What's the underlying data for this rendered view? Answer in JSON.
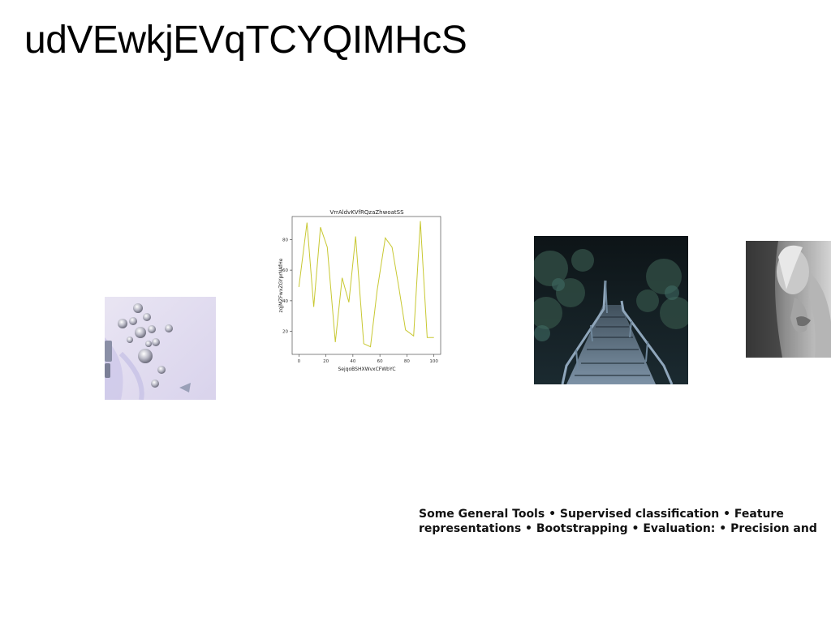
{
  "slide": {
    "title": "udVEwkjEVqTCYQIMHcS",
    "caption_line1": "Some General Tools • Supervised classification • Feature",
    "caption_line2": "representations • Bootstrapping • Evaluation: • Precision and"
  },
  "images": [
    {
      "name": "beads-photo",
      "description": "silver beads on lavender background"
    },
    {
      "name": "forest-stairs-photo",
      "description": "wooden stairway in dark forest"
    },
    {
      "name": "couple-photo",
      "description": "black and white portrait"
    }
  ],
  "chart_data": {
    "type": "line",
    "title": "VrrAldvKVfRQzaZhwoatSS",
    "xlabel": "SejqoBSHXWvxCFWbYC",
    "ylabel": "zqjMZFwxZGYprNAfHe",
    "xlim": [
      -5,
      105
    ],
    "ylim": [
      5,
      95
    ],
    "xticks": [
      0,
      20,
      40,
      60,
      80,
      100
    ],
    "yticks": [
      20,
      40,
      60,
      80
    ],
    "grid": false,
    "color": "#c8c832",
    "series": [
      {
        "x": [
          0,
          6,
          11,
          16,
          21,
          27,
          32,
          37,
          42,
          48,
          53,
          58,
          64,
          69,
          74,
          79,
          85,
          90,
          95,
          100
        ],
        "values": [
          49,
          91,
          36,
          88,
          75,
          13,
          55,
          39,
          82,
          12,
          10,
          47,
          81,
          75,
          49,
          21,
          17,
          92,
          16,
          16
        ]
      }
    ]
  }
}
